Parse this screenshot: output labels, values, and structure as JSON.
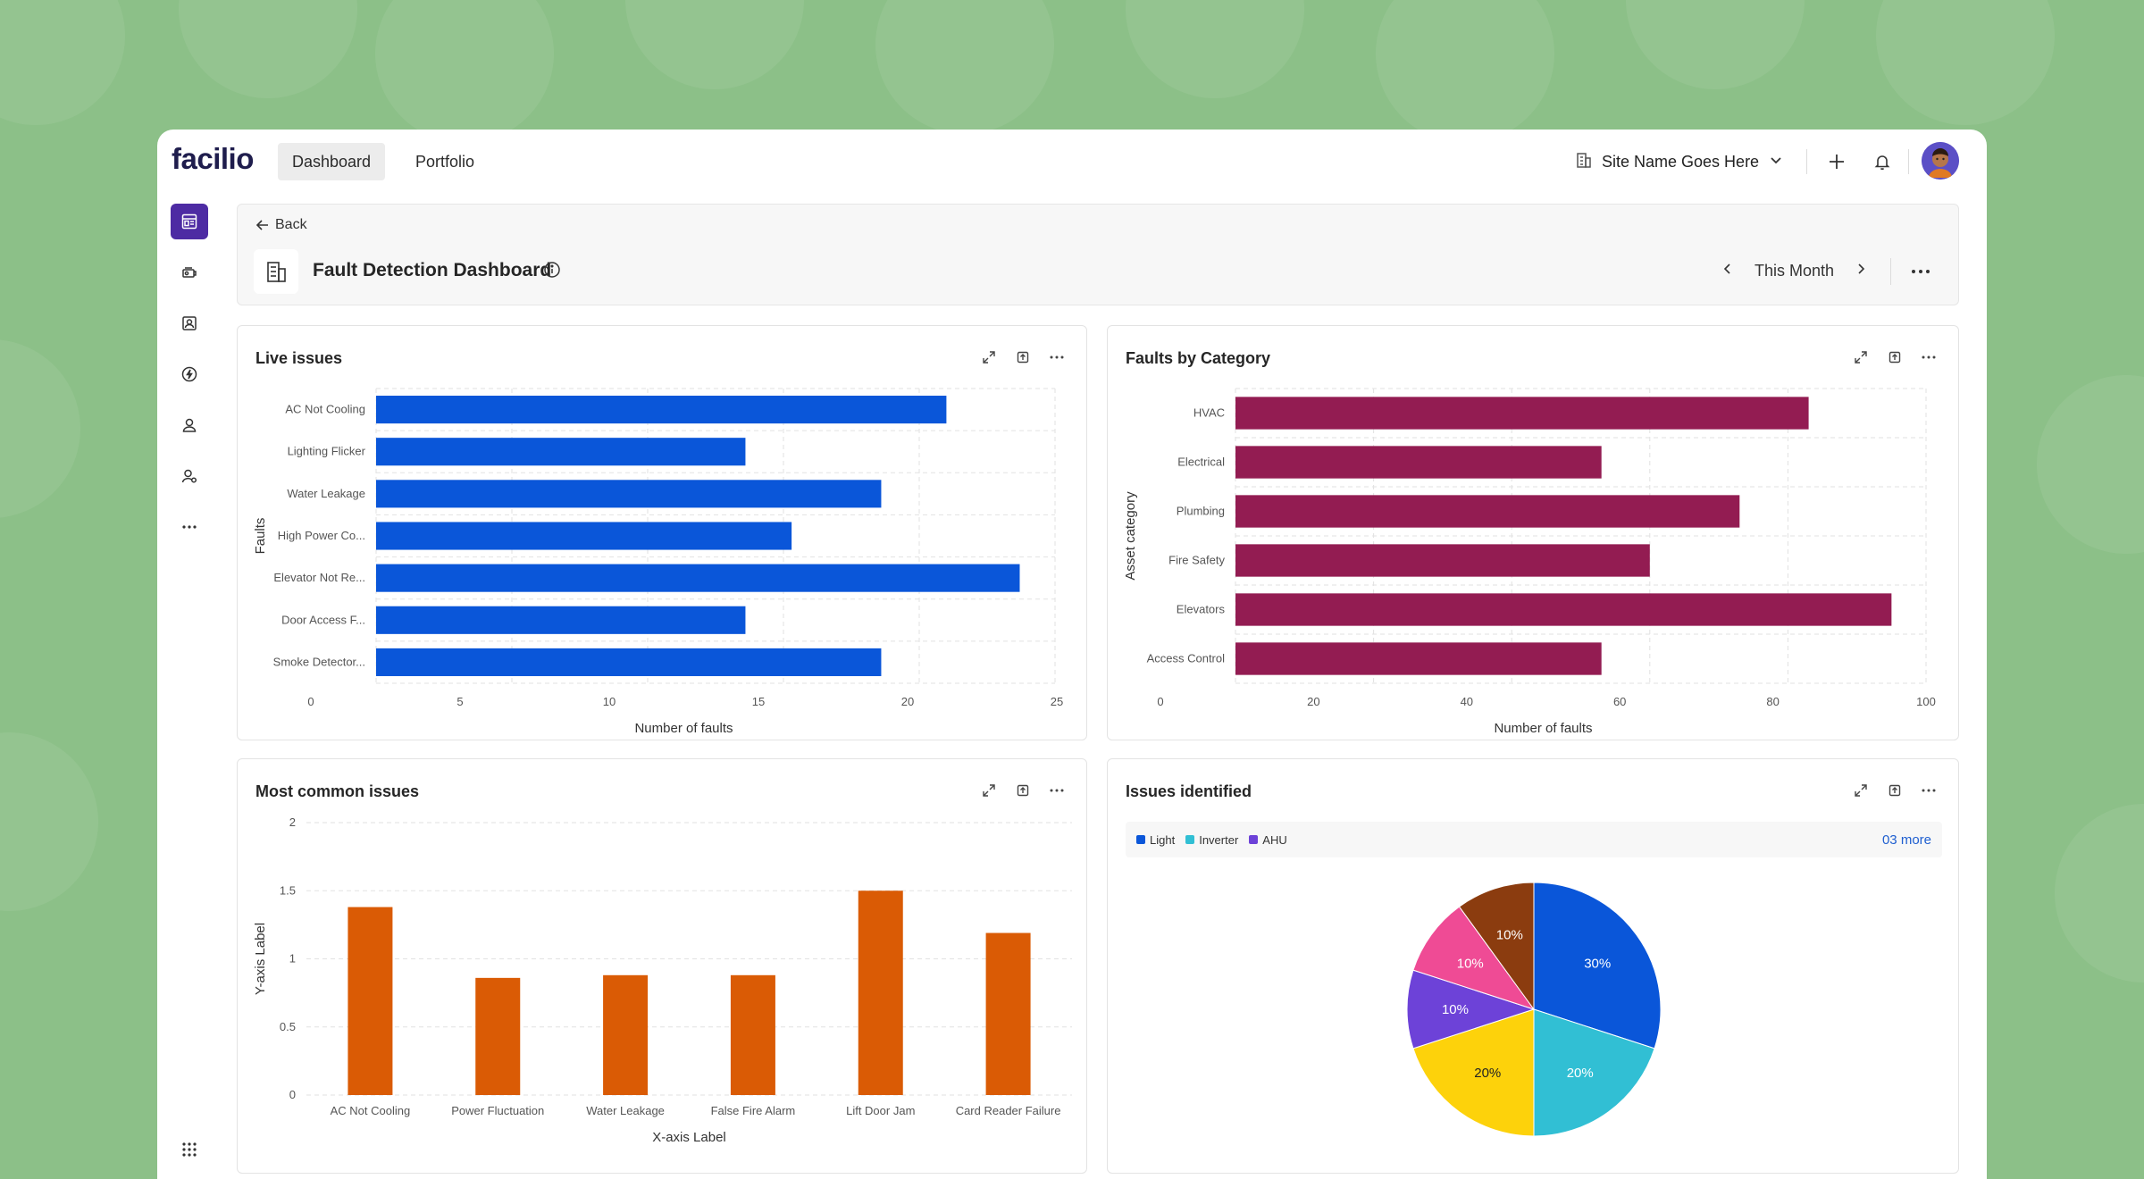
{
  "app": {
    "logo": "facilio",
    "nav_tabs": [
      {
        "label": "Dashboard",
        "active": true
      },
      {
        "label": "Portfolio",
        "active": false
      }
    ],
    "site_selector": "Site Name Goes Here",
    "accent_color": "#4d2ba3"
  },
  "sidebar": {
    "items": [
      {
        "icon": "dashboard-icon",
        "active": true
      },
      {
        "icon": "assets-icon",
        "active": false
      },
      {
        "icon": "contacts-icon",
        "active": false
      },
      {
        "icon": "energy-icon",
        "active": false
      },
      {
        "icon": "people-icon",
        "active": false
      },
      {
        "icon": "user-settings-icon",
        "active": false
      },
      {
        "icon": "more-icon",
        "active": false
      }
    ],
    "bottom_items": [
      {
        "icon": "apps-grid-icon"
      },
      {
        "icon": "settings-icon"
      }
    ]
  },
  "header": {
    "back_label": "Back",
    "title": "Fault Detection Dashboard",
    "period": "This Month"
  },
  "cards": {
    "live_issues": {
      "title": "Live issues"
    },
    "faults_by_category": {
      "title": "Faults by Category"
    },
    "most_common": {
      "title": "Most common issues"
    },
    "issues_identified": {
      "title": "Issues identified",
      "legend": [
        {
          "label": "Light",
          "color": "#0a56d9"
        },
        {
          "label": "Inverter",
          "color": "#31bfd4"
        },
        {
          "label": "AHU",
          "color": "#6d42d8"
        }
      ],
      "legend_more": "03 more"
    }
  },
  "chart_data": [
    {
      "type": "bar",
      "orientation": "horizontal",
      "title": "Live issues",
      "categories": [
        "AC Not Cooling",
        "Lighting Flicker",
        "Water Leakage",
        "High Power Co...",
        "Elevator Not Re...",
        "Door Access F...",
        "Smoke Detector..."
      ],
      "values": [
        21,
        13.6,
        18.6,
        15.3,
        23.7,
        13.6,
        18.6
      ],
      "xlabel": "Number of faults",
      "ylabel": "Faults",
      "xlim": [
        0,
        25
      ],
      "xticks": [
        0,
        5,
        10,
        15,
        20,
        25
      ],
      "color": "#0a56d9",
      "grid": true
    },
    {
      "type": "bar",
      "orientation": "horizontal",
      "title": "Faults by Category",
      "categories": [
        "HVAC",
        "Electrical",
        "Plumbing",
        "Fire Safety",
        "Elevators",
        "Access Control"
      ],
      "values": [
        83,
        53,
        73,
        60,
        95,
        53
      ],
      "xlabel": "Number of faults",
      "ylabel": "Asset category",
      "xlim": [
        0,
        100
      ],
      "xticks": [
        0,
        20,
        40,
        60,
        80,
        100
      ],
      "color": "#931c52",
      "grid": true
    },
    {
      "type": "bar",
      "orientation": "vertical",
      "title": "Most common issues",
      "categories": [
        "AC Not Cooling",
        "Power Fluctuation",
        "Water Leakage",
        "False Fire Alarm",
        "Lift Door Jam",
        "Card Reader Failure"
      ],
      "values": [
        1.38,
        0.86,
        0.88,
        0.88,
        1.5,
        1.19
      ],
      "xlabel": "X-axis Label",
      "ylabel": "Y-axis Label",
      "ylim": [
        0,
        2
      ],
      "yticks": [
        "0",
        "0.5",
        "1",
        "1.5",
        "2"
      ],
      "color": "#da5b05",
      "grid": true
    },
    {
      "type": "pie",
      "title": "Issues identified",
      "slices": [
        {
          "value": 30,
          "label": "30%",
          "color": "#0a56d9"
        },
        {
          "value": 20,
          "label": "20%",
          "color": "#31bfd4"
        },
        {
          "value": 20,
          "label": "20%",
          "color": "#fdd20b"
        },
        {
          "value": 10,
          "label": "10%",
          "color": "#6d42d8"
        },
        {
          "value": 10,
          "label": "10%",
          "color": "#ef4b95"
        },
        {
          "value": 10,
          "label": "10%",
          "color": "#8b3c0f"
        }
      ],
      "legend_position": "top"
    }
  ]
}
